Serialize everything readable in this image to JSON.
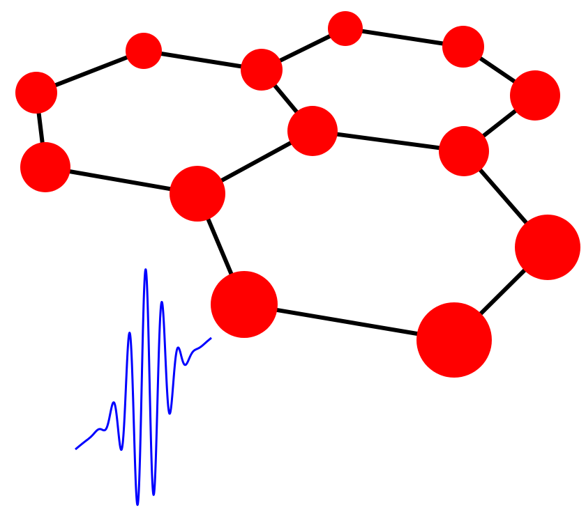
{
  "diagram": {
    "colors": {
      "background": "#ffffff",
      "atom": "#ff0000",
      "bond": "#000000",
      "wave": "#0000ff"
    },
    "atoms": [
      {
        "id": "a1"
      },
      {
        "id": "a2"
      },
      {
        "id": "a3"
      },
      {
        "id": "a4"
      },
      {
        "id": "a5"
      },
      {
        "id": "a6"
      },
      {
        "id": "a7"
      },
      {
        "id": "a8"
      },
      {
        "id": "a9"
      },
      {
        "id": "a10"
      },
      {
        "id": "a11"
      },
      {
        "id": "a12"
      },
      {
        "id": "a13"
      },
      {
        "id": "a14"
      }
    ],
    "bonds": [
      [
        "a1",
        "a2"
      ],
      [
        "a2",
        "a3"
      ],
      [
        "a3",
        "a4"
      ],
      [
        "a4",
        "a5"
      ],
      [
        "a5",
        "a6"
      ],
      [
        "a6",
        "a1"
      ],
      [
        "a3",
        "a7"
      ],
      [
        "a7",
        "a8"
      ],
      [
        "a8",
        "a9"
      ],
      [
        "a9",
        "a10"
      ],
      [
        "a10",
        "a4"
      ],
      [
        "a5",
        "a11"
      ],
      [
        "a11",
        "a12"
      ],
      [
        "a12",
        "a13"
      ],
      [
        "a13",
        "a14"
      ],
      [
        "a14",
        "a10"
      ]
    ],
    "wave": {
      "description_visible": false
    }
  }
}
